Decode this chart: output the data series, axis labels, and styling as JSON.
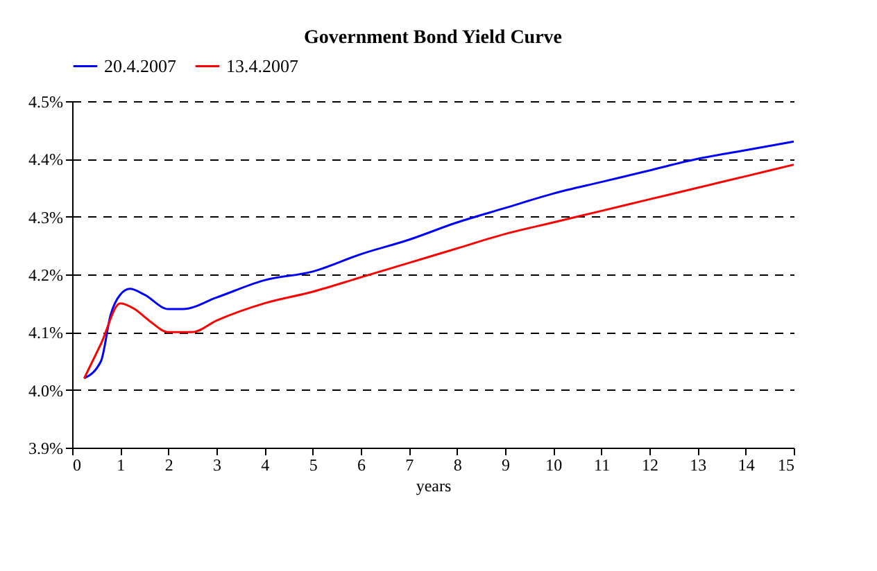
{
  "chart_data": {
    "type": "line",
    "title": "Government Bond Yield Curve",
    "xlabel": "years",
    "series": [
      {
        "name": "20.4.2007",
        "color": "#0000ff",
        "x": [
          0.25,
          0.6,
          0.8,
          1.0,
          1.2,
          1.5,
          2.0,
          2.3,
          3,
          4,
          5,
          6,
          7,
          8,
          9,
          10,
          11,
          12,
          13,
          14,
          15
        ],
        "values": [
          4.02,
          4.05,
          4.13,
          4.165,
          4.175,
          4.165,
          4.14,
          4.14,
          4.16,
          4.19,
          4.205,
          4.235,
          4.26,
          4.29,
          4.315,
          4.34,
          4.36,
          4.38,
          4.4,
          4.415,
          4.43
        ]
      },
      {
        "name": "13.4.2007",
        "color": "#ff0000",
        "x": [
          0.25,
          0.6,
          1.0,
          1.3,
          1.6,
          2.0,
          2.5,
          3,
          4,
          5,
          6,
          7,
          8,
          9,
          10,
          11,
          12,
          13,
          14,
          15
        ],
        "values": [
          4.02,
          4.08,
          4.15,
          4.14,
          4.12,
          4.1,
          4.1,
          4.12,
          4.15,
          4.17,
          4.195,
          4.22,
          4.245,
          4.27,
          4.29,
          4.31,
          4.33,
          4.35,
          4.37,
          4.39
        ]
      }
    ],
    "xlim": [
      0,
      15
    ],
    "xticks": [
      0,
      1,
      2,
      3,
      4,
      5,
      6,
      7,
      8,
      9,
      10,
      11,
      12,
      13,
      14,
      15
    ],
    "ylim": [
      3.9,
      4.5
    ],
    "yticks": [
      {
        "value": 3.9,
        "label": "3.9%"
      },
      {
        "value": 4.0,
        "label": "4.0%"
      },
      {
        "value": 4.1,
        "label": "4.1%"
      },
      {
        "value": 4.2,
        "label": "4.2%"
      },
      {
        "value": 4.3,
        "label": "4.3%"
      },
      {
        "value": 4.4,
        "label": "4.4%"
      },
      {
        "value": 4.5,
        "label": "4.5%"
      }
    ],
    "grid": "y",
    "legend": "top",
    "marker": "none",
    "line_style": "solid"
  }
}
